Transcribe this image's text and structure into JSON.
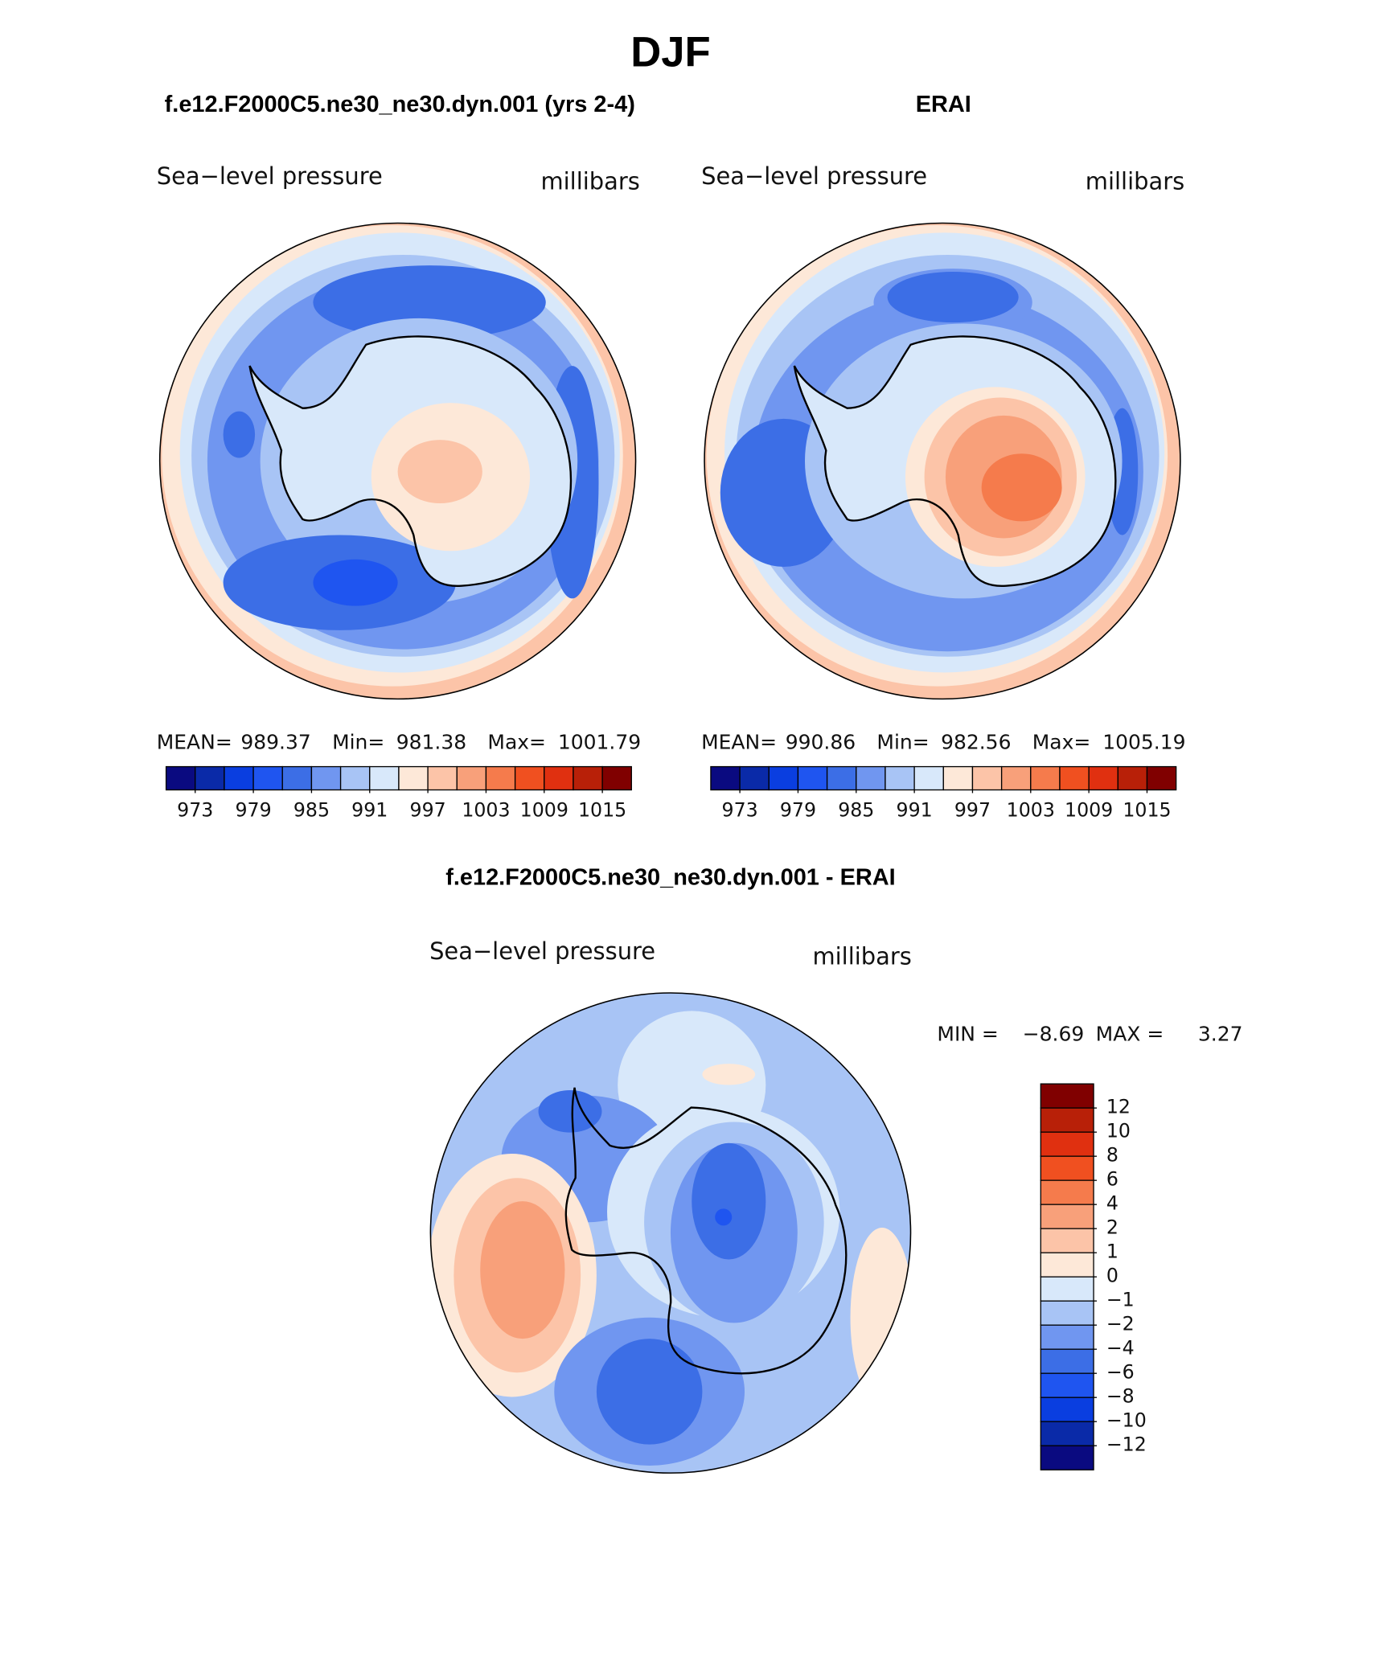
{
  "title": "DJF",
  "palette": [
    "#0a0a80",
    "#0a2aa8",
    "#0a3ee0",
    "#1f55f0",
    "#3c6ee6",
    "#7096f0",
    "#a8c4f5",
    "#d8e8fa",
    "#fde8d8",
    "#fcc4a8",
    "#f8a07a",
    "#f57b4c",
    "#f05020",
    "#e03010",
    "#b82008",
    "#800000"
  ],
  "panels": [
    {
      "title": "f.e12.F2000C5.ne30_ne30.dyn.001 (yrs 2-4)",
      "variable": "Sea−level pressure",
      "units": "millibars",
      "stats": [
        {
          "label": "MEAN=",
          "value": 989.37
        },
        {
          "label": "Min=",
          "value": 981.38
        },
        {
          "label": "Max=",
          "value": 1001.79
        }
      ],
      "colorbar": {
        "lim": [
          970,
          1018
        ],
        "ticks": [
          973,
          979,
          985,
          991,
          997,
          1003,
          1009,
          1015
        ]
      }
    },
    {
      "title": "ERAI",
      "variable": "Sea−level pressure",
      "units": "millibars",
      "stats": [
        {
          "label": "MEAN=",
          "value": 990.86
        },
        {
          "label": "Min=",
          "value": 982.56
        },
        {
          "label": "Max=",
          "value": 1005.19
        }
      ],
      "colorbar": {
        "lim": [
          970,
          1018
        ],
        "ticks": [
          973,
          979,
          985,
          991,
          997,
          1003,
          1009,
          1015
        ]
      }
    },
    {
      "title": "f.e12.F2000C5.ne30_ne30.dyn.001 - ERAI",
      "variable": "Sea−level pressure",
      "units": "millibars",
      "stats": [
        {
          "label": "MIN =",
          "value": {
            "value": -8.69,
            "label": "−8.69"
          }
        },
        {
          "label": "MAX =",
          "value": 3.27
        }
      ],
      "colorbar": {
        "ticks": [
          12,
          10,
          8,
          6,
          4,
          2,
          1,
          0,
          {
            "value": -1,
            "label": "−1"
          },
          {
            "value": -2,
            "label": "−2"
          },
          {
            "value": -4,
            "label": "−4"
          },
          {
            "value": -6,
            "label": "−6"
          },
          {
            "value": -8,
            "label": "−8"
          },
          {
            "value": -10,
            "label": "−10"
          },
          {
            "value": -12,
            "label": "−12"
          }
        ]
      }
    }
  ]
}
